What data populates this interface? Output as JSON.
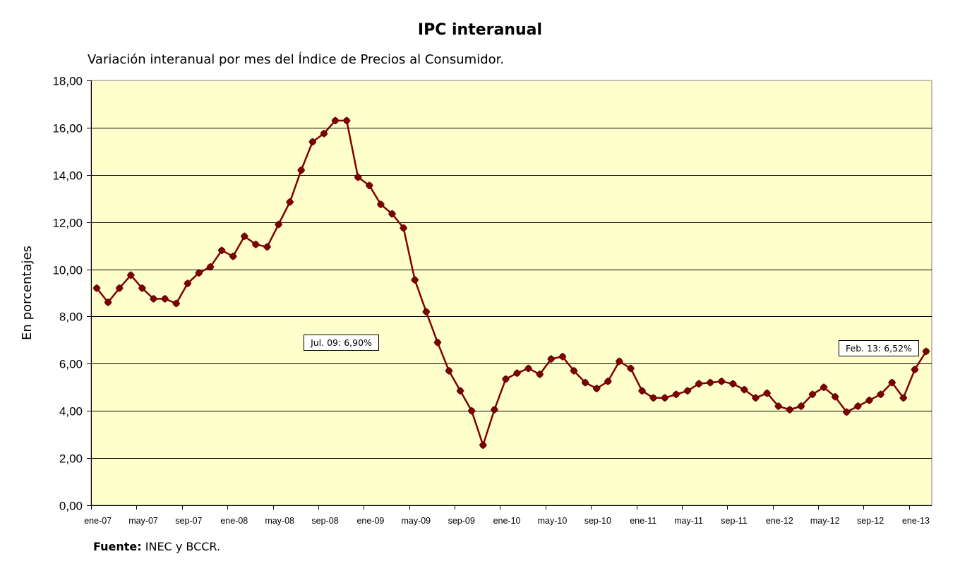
{
  "title": "IPC interanual",
  "subtitle": "Variación interanual por mes del Índice de Precios al Consumidor.",
  "source_label": "Fuente:",
  "source_text": " INEC y BCCR.",
  "colors": {
    "plot_background": "#FFFFCC",
    "series_line": "#800000",
    "marker": "#800000",
    "grid": "#000000"
  },
  "chart_data": {
    "type": "line",
    "title": "IPC interanual",
    "subtitle": "Variación interanual por mes del Índice de Precios al Consumidor.",
    "xlabel": "",
    "ylabel": "En porcentajes",
    "ylim": [
      0,
      18
    ],
    "yticks": [
      "0,00",
      "2,00",
      "4,00",
      "6,00",
      "8,00",
      "10,00",
      "12,00",
      "14,00",
      "16,00",
      "18,00"
    ],
    "grid": "horizontal",
    "x_tick_labels": [
      "ene-07",
      "may-07",
      "sep-07",
      "ene-08",
      "may-08",
      "sep-08",
      "ene-09",
      "may-09",
      "sep-09",
      "ene-10",
      "may-10",
      "sep-10",
      "ene-11",
      "may-11",
      "sep-11",
      "ene-12",
      "may-12",
      "sep-12",
      "ene-13"
    ],
    "x_start": "ene-07",
    "x_end": "feb-13",
    "series": [
      {
        "values": [
          9.2,
          8.6,
          9.2,
          9.75,
          9.2,
          8.75,
          8.75,
          8.55,
          9.4,
          9.85,
          10.1,
          10.8,
          10.55,
          11.4,
          11.05,
          10.95,
          11.9,
          12.85,
          14.2,
          15.4,
          15.75,
          16.3,
          16.3,
          13.9,
          13.55,
          12.75,
          12.35,
          11.75,
          9.55,
          8.2,
          6.9,
          5.7,
          4.85,
          4.0,
          2.55,
          4.05,
          5.35,
          5.6,
          5.8,
          5.55,
          6.2,
          6.3,
          5.7,
          5.2,
          4.95,
          5.25,
          6.1,
          5.8,
          4.85,
          4.55,
          4.55,
          4.7,
          4.85,
          5.15,
          5.2,
          5.25,
          5.15,
          4.9,
          4.55,
          4.75,
          4.2,
          4.05,
          4.2,
          4.7,
          5.0,
          4.6,
          3.95,
          4.2,
          4.45,
          4.7,
          5.2,
          4.55,
          5.75,
          6.52
        ]
      }
    ],
    "annotations": [
      {
        "text": "Jul. 09: 6,90%",
        "point_index": 30
      },
      {
        "text": "Feb. 13: 6,52%",
        "point_index": 73
      }
    ]
  }
}
